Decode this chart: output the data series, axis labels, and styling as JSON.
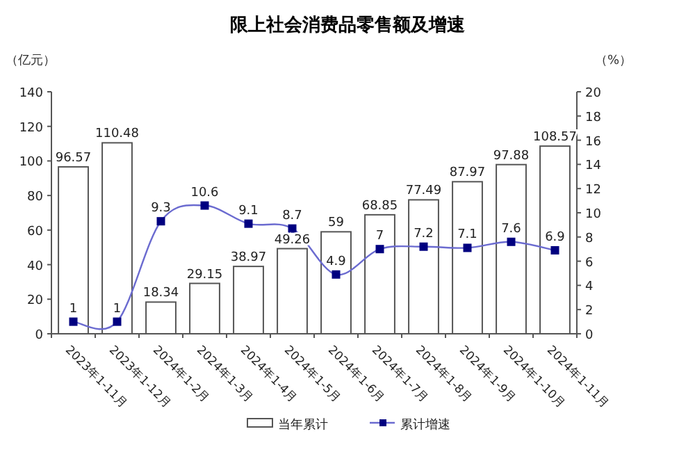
{
  "chart_data": {
    "type": "bar",
    "title": "限上社会消费品零售额及增速",
    "ylabel": "（亿元）",
    "y2label": "（%）",
    "categories": [
      "2023年1-11月",
      "2023年1-12月",
      "2024年1-2月",
      "2024年1-3月",
      "2024年1-4月",
      "2024年1-5月",
      "2024年1-6月",
      "2024年1-7月",
      "2024年1-8月",
      "2024年1-9月",
      "2024年1-10月",
      "2024年1-11月"
    ],
    "series": [
      {
        "name": "当年累计",
        "color": "#ffffff",
        "values": [
          96.57,
          110.48,
          18.34,
          29.15,
          38.97,
          49.26,
          59,
          68.85,
          77.49,
          87.97,
          97.88,
          108.57
        ]
      },
      {
        "name": "累计增速",
        "type": "line",
        "axis": "y2",
        "color": "#000080",
        "marker": "square",
        "values": [
          1,
          1,
          9.3,
          10.6,
          9.1,
          8.7,
          4.9,
          7,
          7.2,
          7.1,
          7.6,
          6.9
        ]
      }
    ],
    "ylim": [
      0,
      140
    ],
    "yticks": [
      0,
      20,
      40,
      60,
      80,
      100,
      120,
      140
    ],
    "y2lim": [
      0,
      20
    ],
    "y2ticks": [
      0,
      2,
      4,
      6,
      8,
      10,
      12,
      14,
      16,
      18,
      20
    ],
    "data_labels": true,
    "legend": "bottom",
    "grid": false
  }
}
